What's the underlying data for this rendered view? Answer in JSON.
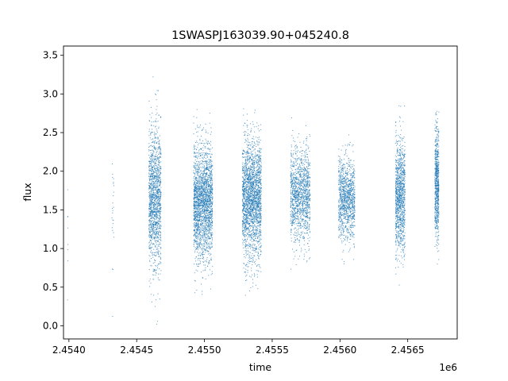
{
  "chart_data": {
    "type": "scatter",
    "title": "1SWASPJ163039.90+045240.8",
    "xlabel": "time",
    "ylabel": "flux",
    "x_offset_label": "1e6",
    "xlim": [
      2453960,
      2456865
    ],
    "ylim": [
      -0.17,
      3.62
    ],
    "xticks": [
      2454000,
      2454500,
      2455000,
      2455500,
      2456000,
      2456500
    ],
    "xtick_labels": [
      "2.4540",
      "2.4545",
      "2.4550",
      "2.4555",
      "2.4560",
      "2.4565"
    ],
    "yticks": [
      0.0,
      0.5,
      1.0,
      1.5,
      2.0,
      2.5,
      3.0,
      3.5
    ],
    "ytick_labels": [
      "0.0",
      "0.5",
      "1.0",
      "1.5",
      "2.0",
      "2.5",
      "3.0",
      "3.5"
    ],
    "grid": false,
    "marker_color": "#1f77b4",
    "series": [
      {
        "name": "",
        "seasons": [
          {
            "x_start": 2453990,
            "x_end": 2453993,
            "flux_mean": 1.3,
            "flux_sd": 0.35,
            "n": 8
          },
          {
            "x_start": 2454317,
            "x_end": 2454335,
            "flux_mean": 1.5,
            "flux_sd": 0.45,
            "n": 25
          },
          {
            "x_start": 2454590,
            "x_end": 2454680,
            "flux_mean": 1.65,
            "flux_sd": 0.45,
            "n": 1400
          },
          {
            "x_start": 2454920,
            "x_end": 2455060,
            "flux_mean": 1.6,
            "flux_sd": 0.38,
            "n": 2200
          },
          {
            "x_start": 2455280,
            "x_end": 2455420,
            "flux_mean": 1.65,
            "flux_sd": 0.38,
            "n": 2200
          },
          {
            "x_start": 2455635,
            "x_end": 2455780,
            "flux_mean": 1.7,
            "flux_sd": 0.3,
            "n": 1300
          },
          {
            "x_start": 2455990,
            "x_end": 2456110,
            "flux_mean": 1.65,
            "flux_sd": 0.27,
            "n": 1100
          },
          {
            "x_start": 2456410,
            "x_end": 2456480,
            "flux_mean": 1.7,
            "flux_sd": 0.36,
            "n": 1100
          },
          {
            "x_start": 2456700,
            "x_end": 2456730,
            "flux_mean": 1.85,
            "flux_sd": 0.35,
            "n": 700
          }
        ]
      }
    ]
  }
}
